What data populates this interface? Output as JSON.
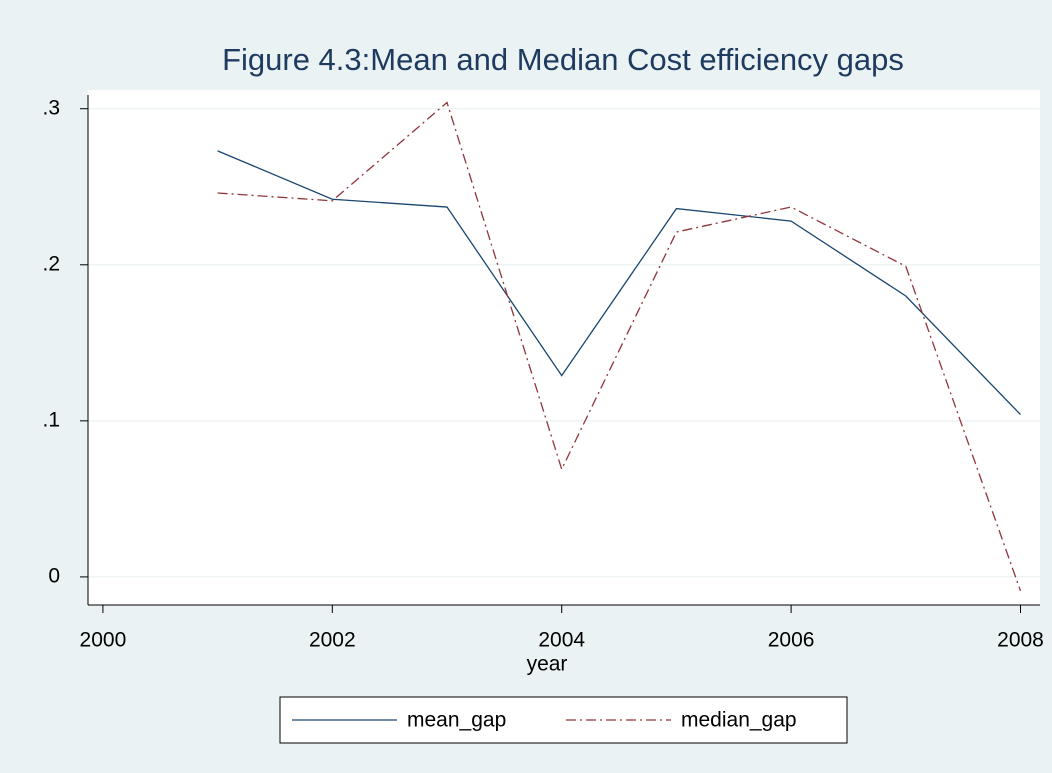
{
  "chart_data": {
    "type": "line",
    "title": "Figure 4.3:Mean and Median Cost efficiency gaps",
    "x_label": "year",
    "x": [
      2001,
      2002,
      2003,
      2004,
      2005,
      2006,
      2007,
      2008
    ],
    "series": [
      {
        "name": "mean_gap",
        "color": "#1a476f",
        "dash": "solid",
        "values": [
          0.273,
          0.242,
          0.237,
          0.129,
          0.236,
          0.228,
          0.18,
          0.104
        ]
      },
      {
        "name": "median_gap",
        "color": "#90353b",
        "dash": "dashdot",
        "values": [
          0.246,
          0.241,
          0.304,
          0.069,
          0.221,
          0.237,
          0.199,
          -0.009
        ]
      }
    ],
    "xlim": [
      1999.87,
      2008.17
    ],
    "xticks": [
      2000,
      2002,
      2004,
      2006,
      2008
    ],
    "ylim": [
      -0.018,
      0.312
    ],
    "yticks": [
      0,
      {
        "value": 0.1,
        "label": ".1"
      },
      {
        "value": 0.2,
        "label": ".2"
      },
      {
        "value": 0.3,
        "label": ".3"
      }
    ],
    "grid": true,
    "legend": "bottom"
  }
}
